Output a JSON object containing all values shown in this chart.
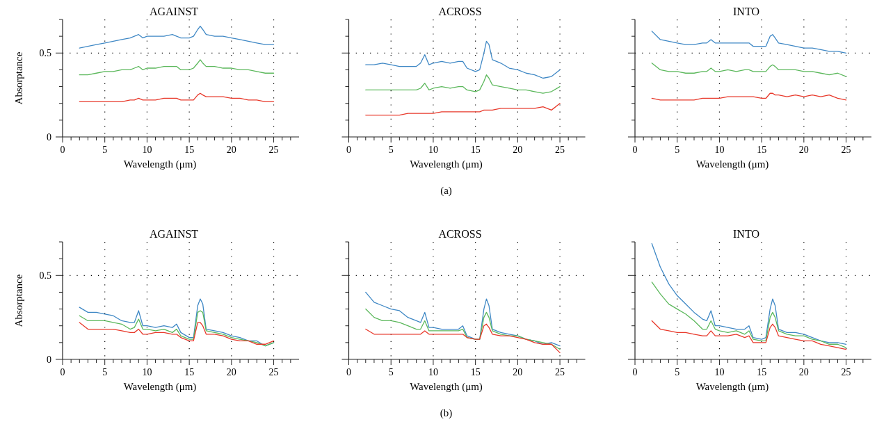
{
  "chart_data": [
    {
      "type": "line",
      "title": "AGAINST",
      "xlabel": "Wavelength (μm)",
      "ylabel": "Absorptance",
      "x": [
        2,
        3,
        4,
        5,
        6,
        7,
        8,
        8.5,
        9,
        9.5,
        10,
        11,
        12,
        13,
        13.5,
        14,
        15,
        15.5,
        16,
        16.3,
        16.6,
        17,
        18,
        19,
        20,
        21,
        22,
        23,
        24,
        25
      ],
      "xlim": [
        0,
        28
      ],
      "ylim": [
        0,
        0.7
      ],
      "xticks": [
        {
          "value": 0,
          "label": "0"
        },
        {
          "value": 1,
          "label": null
        },
        {
          "value": 2,
          "label": null
        },
        {
          "value": 3,
          "label": null
        },
        {
          "value": 4,
          "label": null
        },
        {
          "value": 5,
          "label": "5"
        },
        {
          "value": 6,
          "label": null
        },
        {
          "value": 7,
          "label": null
        },
        {
          "value": 8,
          "label": null
        },
        {
          "value": 9,
          "label": null
        },
        {
          "value": 10,
          "label": "10"
        },
        {
          "value": 11,
          "label": null
        },
        {
          "value": 12,
          "label": null
        },
        {
          "value": 13,
          "label": null
        },
        {
          "value": 14,
          "label": null
        },
        {
          "value": 15,
          "label": "15"
        },
        {
          "value": 16,
          "label": null
        },
        {
          "value": 17,
          "label": null
        },
        {
          "value": 18,
          "label": null
        },
        {
          "value": 19,
          "label": null
        },
        {
          "value": 20,
          "label": "20"
        },
        {
          "value": 21,
          "label": null
        },
        {
          "value": 22,
          "label": null
        },
        {
          "value": 23,
          "label": null
        },
        {
          "value": 24,
          "label": null
        },
        {
          "value": 25,
          "label": "25"
        },
        {
          "value": 26,
          "label": null
        },
        {
          "value": 27,
          "label": null
        }
      ],
      "yticks": [
        {
          "value": 0,
          "label": "0"
        },
        {
          "value": 0.1,
          "label": null
        },
        {
          "value": 0.2,
          "label": null
        },
        {
          "value": 0.3,
          "label": null
        },
        {
          "value": 0.4,
          "label": null
        },
        {
          "value": 0.5,
          "label": "0.5"
        },
        {
          "value": 0.6,
          "label": null
        },
        {
          "value": 0.7,
          "label": null
        }
      ],
      "grid": true,
      "series": [
        {
          "color": "#3f88c5",
          "values": [
            0.53,
            0.54,
            0.55,
            0.56,
            0.57,
            0.58,
            0.59,
            0.6,
            0.61,
            0.59,
            0.6,
            0.6,
            0.6,
            0.61,
            0.6,
            0.59,
            0.59,
            0.6,
            0.64,
            0.66,
            0.64,
            0.61,
            0.6,
            0.6,
            0.59,
            0.58,
            0.57,
            0.56,
            0.55,
            0.55
          ]
        },
        {
          "color": "#5cb85c",
          "values": [
            0.37,
            0.37,
            0.38,
            0.39,
            0.39,
            0.4,
            0.4,
            0.41,
            0.42,
            0.4,
            0.41,
            0.41,
            0.42,
            0.42,
            0.42,
            0.4,
            0.4,
            0.41,
            0.44,
            0.46,
            0.44,
            0.42,
            0.42,
            0.41,
            0.41,
            0.4,
            0.4,
            0.39,
            0.38,
            0.38
          ]
        },
        {
          "color": "#e8392b",
          "values": [
            0.21,
            0.21,
            0.21,
            0.21,
            0.21,
            0.21,
            0.22,
            0.22,
            0.23,
            0.22,
            0.22,
            0.22,
            0.23,
            0.23,
            0.23,
            0.22,
            0.22,
            0.22,
            0.25,
            0.26,
            0.25,
            0.24,
            0.24,
            0.24,
            0.23,
            0.23,
            0.22,
            0.22,
            0.21,
            0.21
          ]
        }
      ]
    },
    {
      "type": "line",
      "title": "ACROSS",
      "xlabel": "Wavelength (μm)",
      "annotations": [
        "(a)"
      ],
      "tick_labels": "x",
      "x": [
        2,
        3,
        4,
        5,
        6,
        7,
        8,
        8.5,
        9,
        9.5,
        10,
        11,
        12,
        13,
        13.5,
        14,
        15,
        15.5,
        16,
        16.3,
        16.6,
        17,
        18,
        19,
        20,
        21,
        22,
        23,
        24,
        25
      ],
      "xlim": [
        0,
        28
      ],
      "ylim": [
        0,
        0.7
      ],
      "xticks": [
        {
          "value": 0,
          "label": "0"
        },
        {
          "value": 1,
          "label": null
        },
        {
          "value": 2,
          "label": null
        },
        {
          "value": 3,
          "label": null
        },
        {
          "value": 4,
          "label": null
        },
        {
          "value": 5,
          "label": "5"
        },
        {
          "value": 6,
          "label": null
        },
        {
          "value": 7,
          "label": null
        },
        {
          "value": 8,
          "label": null
        },
        {
          "value": 9,
          "label": null
        },
        {
          "value": 10,
          "label": "10"
        },
        {
          "value": 11,
          "label": null
        },
        {
          "value": 12,
          "label": null
        },
        {
          "value": 13,
          "label": null
        },
        {
          "value": 14,
          "label": null
        },
        {
          "value": 15,
          "label": "15"
        },
        {
          "value": 16,
          "label": null
        },
        {
          "value": 17,
          "label": null
        },
        {
          "value": 18,
          "label": null
        },
        {
          "value": 19,
          "label": null
        },
        {
          "value": 20,
          "label": "20"
        },
        {
          "value": 21,
          "label": null
        },
        {
          "value": 22,
          "label": null
        },
        {
          "value": 23,
          "label": null
        },
        {
          "value": 24,
          "label": null
        },
        {
          "value": 25,
          "label": "25"
        },
        {
          "value": 26,
          "label": null
        },
        {
          "value": 27,
          "label": null
        }
      ],
      "yticks": [
        {
          "value": 0,
          "label": null
        },
        {
          "value": 0.1,
          "label": null
        },
        {
          "value": 0.2,
          "label": null
        },
        {
          "value": 0.3,
          "label": null
        },
        {
          "value": 0.4,
          "label": null
        },
        {
          "value": 0.5,
          "label": null
        },
        {
          "value": 0.6,
          "label": null
        },
        {
          "value": 0.7,
          "label": null
        }
      ],
      "grid": true,
      "series": [
        {
          "color": "#3f88c5",
          "values": [
            0.43,
            0.43,
            0.44,
            0.43,
            0.42,
            0.42,
            0.42,
            0.44,
            0.49,
            0.43,
            0.44,
            0.45,
            0.44,
            0.45,
            0.45,
            0.41,
            0.39,
            0.4,
            0.5,
            0.57,
            0.55,
            0.46,
            0.44,
            0.41,
            0.4,
            0.38,
            0.37,
            0.35,
            0.36,
            0.4
          ]
        },
        {
          "color": "#5cb85c",
          "values": [
            0.28,
            0.28,
            0.28,
            0.28,
            0.28,
            0.28,
            0.28,
            0.29,
            0.32,
            0.28,
            0.29,
            0.3,
            0.29,
            0.3,
            0.3,
            0.28,
            0.27,
            0.28,
            0.33,
            0.37,
            0.35,
            0.31,
            0.3,
            0.29,
            0.28,
            0.28,
            0.27,
            0.26,
            0.27,
            0.3
          ]
        },
        {
          "color": "#e8392b",
          "values": [
            0.13,
            0.13,
            0.13,
            0.13,
            0.13,
            0.14,
            0.14,
            0.14,
            0.14,
            0.14,
            0.14,
            0.15,
            0.15,
            0.15,
            0.15,
            0.15,
            0.15,
            0.15,
            0.16,
            0.16,
            0.16,
            0.16,
            0.17,
            0.17,
            0.17,
            0.17,
            0.17,
            0.18,
            0.16,
            0.2
          ]
        }
      ]
    },
    {
      "type": "line",
      "title": "INTO",
      "xlabel": "Wavelength (μm)",
      "tick_labels": "x",
      "x": [
        2,
        3,
        4,
        5,
        6,
        7,
        8,
        8.5,
        9,
        9.5,
        10,
        11,
        12,
        13,
        13.5,
        14,
        15,
        15.5,
        16,
        16.3,
        16.6,
        17,
        18,
        19,
        20,
        21,
        22,
        23,
        24,
        25
      ],
      "xlim": [
        0,
        28
      ],
      "ylim": [
        0,
        0.7
      ],
      "xticks": [
        {
          "value": 0,
          "label": "0"
        },
        {
          "value": 1,
          "label": null
        },
        {
          "value": 2,
          "label": null
        },
        {
          "value": 3,
          "label": null
        },
        {
          "value": 4,
          "label": null
        },
        {
          "value": 5,
          "label": "5"
        },
        {
          "value": 6,
          "label": null
        },
        {
          "value": 7,
          "label": null
        },
        {
          "value": 8,
          "label": null
        },
        {
          "value": 9,
          "label": null
        },
        {
          "value": 10,
          "label": "10"
        },
        {
          "value": 11,
          "label": null
        },
        {
          "value": 12,
          "label": null
        },
        {
          "value": 13,
          "label": null
        },
        {
          "value": 14,
          "label": null
        },
        {
          "value": 15,
          "label": "15"
        },
        {
          "value": 16,
          "label": null
        },
        {
          "value": 17,
          "label": null
        },
        {
          "value": 18,
          "label": null
        },
        {
          "value": 19,
          "label": null
        },
        {
          "value": 20,
          "label": "20"
        },
        {
          "value": 21,
          "label": null
        },
        {
          "value": 22,
          "label": null
        },
        {
          "value": 23,
          "label": null
        },
        {
          "value": 24,
          "label": null
        },
        {
          "value": 25,
          "label": "25"
        },
        {
          "value": 26,
          "label": null
        },
        {
          "value": 27,
          "label": null
        }
      ],
      "yticks": [
        {
          "value": 0,
          "label": null
        },
        {
          "value": 0.1,
          "label": null
        },
        {
          "value": 0.2,
          "label": null
        },
        {
          "value": 0.3,
          "label": null
        },
        {
          "value": 0.4,
          "label": null
        },
        {
          "value": 0.5,
          "label": null
        },
        {
          "value": 0.6,
          "label": null
        },
        {
          "value": 0.7,
          "label": null
        }
      ],
      "grid": true,
      "series": [
        {
          "color": "#3f88c5",
          "values": [
            0.63,
            0.58,
            0.57,
            0.56,
            0.55,
            0.55,
            0.56,
            0.56,
            0.58,
            0.56,
            0.56,
            0.56,
            0.56,
            0.56,
            0.56,
            0.54,
            0.54,
            0.54,
            0.6,
            0.61,
            0.59,
            0.56,
            0.55,
            0.54,
            0.53,
            0.53,
            0.52,
            0.51,
            0.51,
            0.5
          ]
        },
        {
          "color": "#5cb85c",
          "values": [
            0.44,
            0.4,
            0.39,
            0.39,
            0.38,
            0.38,
            0.39,
            0.39,
            0.41,
            0.39,
            0.39,
            0.4,
            0.39,
            0.4,
            0.4,
            0.39,
            0.39,
            0.39,
            0.42,
            0.43,
            0.42,
            0.4,
            0.4,
            0.4,
            0.39,
            0.39,
            0.38,
            0.37,
            0.38,
            0.36
          ]
        },
        {
          "color": "#e8392b",
          "values": [
            0.23,
            0.22,
            0.22,
            0.22,
            0.22,
            0.22,
            0.23,
            0.23,
            0.23,
            0.23,
            0.23,
            0.24,
            0.24,
            0.24,
            0.24,
            0.24,
            0.23,
            0.23,
            0.26,
            0.26,
            0.25,
            0.25,
            0.24,
            0.25,
            0.24,
            0.25,
            0.24,
            0.25,
            0.23,
            0.22
          ]
        }
      ]
    },
    {
      "type": "line",
      "title": "AGAINST",
      "xlabel": "Wavelength (μm)",
      "ylabel": "Absorptance",
      "x": [
        2,
        3,
        4,
        5,
        6,
        7,
        8,
        8.5,
        9,
        9.5,
        10,
        11,
        12,
        13,
        13.5,
        14,
        15,
        15.5,
        16,
        16.3,
        16.6,
        17,
        18,
        19,
        20,
        21,
        22,
        23,
        24,
        25
      ],
      "xlim": [
        0,
        28
      ],
      "ylim": [
        0,
        0.7
      ],
      "xticks": [
        {
          "value": 0,
          "label": "0"
        },
        {
          "value": 1,
          "label": null
        },
        {
          "value": 2,
          "label": null
        },
        {
          "value": 3,
          "label": null
        },
        {
          "value": 4,
          "label": null
        },
        {
          "value": 5,
          "label": "5"
        },
        {
          "value": 6,
          "label": null
        },
        {
          "value": 7,
          "label": null
        },
        {
          "value": 8,
          "label": null
        },
        {
          "value": 9,
          "label": null
        },
        {
          "value": 10,
          "label": "10"
        },
        {
          "value": 11,
          "label": null
        },
        {
          "value": 12,
          "label": null
        },
        {
          "value": 13,
          "label": null
        },
        {
          "value": 14,
          "label": null
        },
        {
          "value": 15,
          "label": "15"
        },
        {
          "value": 16,
          "label": null
        },
        {
          "value": 17,
          "label": null
        },
        {
          "value": 18,
          "label": null
        },
        {
          "value": 19,
          "label": null
        },
        {
          "value": 20,
          "label": "20"
        },
        {
          "value": 21,
          "label": null
        },
        {
          "value": 22,
          "label": null
        },
        {
          "value": 23,
          "label": null
        },
        {
          "value": 24,
          "label": null
        },
        {
          "value": 25,
          "label": "25"
        },
        {
          "value": 26,
          "label": null
        },
        {
          "value": 27,
          "label": null
        }
      ],
      "yticks": [
        {
          "value": 0,
          "label": "0"
        },
        {
          "value": 0.1,
          "label": null
        },
        {
          "value": 0.2,
          "label": null
        },
        {
          "value": 0.3,
          "label": null
        },
        {
          "value": 0.4,
          "label": null
        },
        {
          "value": 0.5,
          "label": "0.5"
        },
        {
          "value": 0.6,
          "label": null
        },
        {
          "value": 0.7,
          "label": null
        }
      ],
      "grid": true,
      "series": [
        {
          "color": "#3f88c5",
          "values": [
            0.31,
            0.28,
            0.28,
            0.27,
            0.26,
            0.23,
            0.22,
            0.22,
            0.29,
            0.2,
            0.2,
            0.19,
            0.2,
            0.19,
            0.21,
            0.16,
            0.13,
            0.13,
            0.32,
            0.36,
            0.33,
            0.18,
            0.17,
            0.16,
            0.14,
            0.13,
            0.11,
            0.11,
            0.08,
            0.1
          ]
        },
        {
          "color": "#5cb85c",
          "values": [
            0.26,
            0.23,
            0.23,
            0.23,
            0.22,
            0.21,
            0.18,
            0.19,
            0.24,
            0.18,
            0.18,
            0.17,
            0.18,
            0.16,
            0.18,
            0.14,
            0.12,
            0.12,
            0.28,
            0.29,
            0.28,
            0.17,
            0.16,
            0.15,
            0.13,
            0.12,
            0.11,
            0.1,
            0.08,
            0.1
          ]
        },
        {
          "color": "#e8392b",
          "values": [
            0.22,
            0.18,
            0.18,
            0.18,
            0.18,
            0.17,
            0.16,
            0.16,
            0.18,
            0.15,
            0.15,
            0.16,
            0.16,
            0.15,
            0.15,
            0.13,
            0.11,
            0.11,
            0.22,
            0.22,
            0.2,
            0.15,
            0.15,
            0.14,
            0.12,
            0.11,
            0.11,
            0.09,
            0.09,
            0.11
          ]
        }
      ]
    },
    {
      "type": "line",
      "title": "ACROSS",
      "xlabel": "Wavelength (μm)",
      "annotations": [
        "(b)"
      ],
      "tick_labels": "x",
      "x": [
        2,
        3,
        4,
        5,
        6,
        7,
        8,
        8.5,
        9,
        9.5,
        10,
        11,
        12,
        13,
        13.5,
        14,
        15,
        15.5,
        16,
        16.3,
        16.6,
        17,
        18,
        19,
        20,
        21,
        22,
        23,
        24,
        25
      ],
      "xlim": [
        0,
        28
      ],
      "ylim": [
        0,
        0.7
      ],
      "xticks": [
        {
          "value": 0,
          "label": "0"
        },
        {
          "value": 1,
          "label": null
        },
        {
          "value": 2,
          "label": null
        },
        {
          "value": 3,
          "label": null
        },
        {
          "value": 4,
          "label": null
        },
        {
          "value": 5,
          "label": "5"
        },
        {
          "value": 6,
          "label": null
        },
        {
          "value": 7,
          "label": null
        },
        {
          "value": 8,
          "label": null
        },
        {
          "value": 9,
          "label": null
        },
        {
          "value": 10,
          "label": "10"
        },
        {
          "value": 11,
          "label": null
        },
        {
          "value": 12,
          "label": null
        },
        {
          "value": 13,
          "label": null
        },
        {
          "value": 14,
          "label": null
        },
        {
          "value": 15,
          "label": "15"
        },
        {
          "value": 16,
          "label": null
        },
        {
          "value": 17,
          "label": null
        },
        {
          "value": 18,
          "label": null
        },
        {
          "value": 19,
          "label": null
        },
        {
          "value": 20,
          "label": "20"
        },
        {
          "value": 21,
          "label": null
        },
        {
          "value": 22,
          "label": null
        },
        {
          "value": 23,
          "label": null
        },
        {
          "value": 24,
          "label": null
        },
        {
          "value": 25,
          "label": "25"
        },
        {
          "value": 26,
          "label": null
        },
        {
          "value": 27,
          "label": null
        }
      ],
      "yticks": [
        {
          "value": 0,
          "label": null
        },
        {
          "value": 0.1,
          "label": null
        },
        {
          "value": 0.2,
          "label": null
        },
        {
          "value": 0.3,
          "label": null
        },
        {
          "value": 0.4,
          "label": null
        },
        {
          "value": 0.5,
          "label": null
        },
        {
          "value": 0.6,
          "label": null
        },
        {
          "value": 0.7,
          "label": null
        }
      ],
      "grid": true,
      "series": [
        {
          "color": "#3f88c5",
          "values": [
            0.4,
            0.34,
            0.32,
            0.3,
            0.29,
            0.25,
            0.23,
            0.22,
            0.28,
            0.19,
            0.19,
            0.18,
            0.18,
            0.18,
            0.2,
            0.14,
            0.12,
            0.12,
            0.3,
            0.36,
            0.32,
            0.18,
            0.16,
            0.15,
            0.14,
            0.12,
            0.11,
            0.09,
            0.1,
            0.08
          ]
        },
        {
          "color": "#5cb85c",
          "values": [
            0.3,
            0.25,
            0.23,
            0.23,
            0.22,
            0.2,
            0.18,
            0.18,
            0.23,
            0.17,
            0.17,
            0.17,
            0.17,
            0.17,
            0.18,
            0.13,
            0.12,
            0.12,
            0.25,
            0.28,
            0.25,
            0.17,
            0.15,
            0.14,
            0.14,
            0.12,
            0.11,
            0.1,
            0.09,
            0.06
          ]
        },
        {
          "color": "#e8392b",
          "values": [
            0.18,
            0.15,
            0.15,
            0.15,
            0.15,
            0.15,
            0.15,
            0.15,
            0.17,
            0.15,
            0.15,
            0.15,
            0.15,
            0.15,
            0.15,
            0.13,
            0.12,
            0.12,
            0.2,
            0.21,
            0.19,
            0.15,
            0.14,
            0.14,
            0.13,
            0.12,
            0.1,
            0.09,
            0.09,
            0.04
          ]
        }
      ]
    },
    {
      "type": "line",
      "title": "INTO",
      "xlabel": "Wavelength (μm)",
      "tick_labels": "x",
      "x": [
        2,
        3,
        4,
        5,
        6,
        7,
        8,
        8.5,
        9,
        9.5,
        10,
        11,
        12,
        13,
        13.5,
        14,
        15,
        15.5,
        16,
        16.3,
        16.6,
        17,
        18,
        19,
        20,
        21,
        22,
        23,
        24,
        25
      ],
      "xlim": [
        0,
        28
      ],
      "ylim": [
        0,
        0.7
      ],
      "xticks": [
        {
          "value": 0,
          "label": "0"
        },
        {
          "value": 1,
          "label": null
        },
        {
          "value": 2,
          "label": null
        },
        {
          "value": 3,
          "label": null
        },
        {
          "value": 4,
          "label": null
        },
        {
          "value": 5,
          "label": "5"
        },
        {
          "value": 6,
          "label": null
        },
        {
          "value": 7,
          "label": null
        },
        {
          "value": 8,
          "label": null
        },
        {
          "value": 9,
          "label": null
        },
        {
          "value": 10,
          "label": "10"
        },
        {
          "value": 11,
          "label": null
        },
        {
          "value": 12,
          "label": null
        },
        {
          "value": 13,
          "label": null
        },
        {
          "value": 14,
          "label": null
        },
        {
          "value": 15,
          "label": "15"
        },
        {
          "value": 16,
          "label": null
        },
        {
          "value": 17,
          "label": null
        },
        {
          "value": 18,
          "label": null
        },
        {
          "value": 19,
          "label": null
        },
        {
          "value": 20,
          "label": "20"
        },
        {
          "value": 21,
          "label": null
        },
        {
          "value": 22,
          "label": null
        },
        {
          "value": 23,
          "label": null
        },
        {
          "value": 24,
          "label": null
        },
        {
          "value": 25,
          "label": "25"
        },
        {
          "value": 26,
          "label": null
        },
        {
          "value": 27,
          "label": null
        }
      ],
      "yticks": [
        {
          "value": 0,
          "label": null
        },
        {
          "value": 0.1,
          "label": null
        },
        {
          "value": 0.2,
          "label": null
        },
        {
          "value": 0.3,
          "label": null
        },
        {
          "value": 0.4,
          "label": null
        },
        {
          "value": 0.5,
          "label": null
        },
        {
          "value": 0.6,
          "label": null
        },
        {
          "value": 0.7,
          "label": null
        }
      ],
      "grid": true,
      "series": [
        {
          "color": "#3f88c5",
          "values": [
            0.69,
            0.55,
            0.45,
            0.38,
            0.33,
            0.28,
            0.24,
            0.23,
            0.29,
            0.2,
            0.2,
            0.19,
            0.18,
            0.18,
            0.2,
            0.13,
            0.12,
            0.13,
            0.3,
            0.36,
            0.32,
            0.18,
            0.16,
            0.16,
            0.15,
            0.13,
            0.11,
            0.1,
            0.1,
            0.09
          ]
        },
        {
          "color": "#5cb85c",
          "values": [
            0.46,
            0.39,
            0.33,
            0.3,
            0.27,
            0.23,
            0.18,
            0.18,
            0.23,
            0.18,
            0.17,
            0.16,
            0.17,
            0.15,
            0.17,
            0.12,
            0.11,
            0.11,
            0.25,
            0.28,
            0.25,
            0.17,
            0.15,
            0.14,
            0.14,
            0.12,
            0.11,
            0.09,
            0.09,
            0.07
          ]
        },
        {
          "color": "#e8392b",
          "values": [
            0.23,
            0.18,
            0.17,
            0.16,
            0.16,
            0.15,
            0.14,
            0.14,
            0.17,
            0.14,
            0.14,
            0.14,
            0.15,
            0.13,
            0.14,
            0.1,
            0.1,
            0.1,
            0.19,
            0.21,
            0.19,
            0.14,
            0.13,
            0.12,
            0.11,
            0.11,
            0.09,
            0.08,
            0.07,
            0.06
          ]
        }
      ]
    }
  ]
}
